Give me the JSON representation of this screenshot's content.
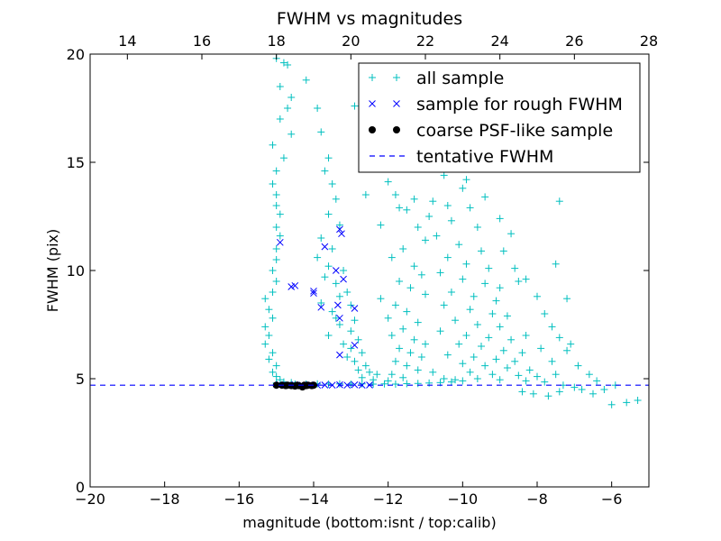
{
  "chart_data": {
    "type": "scatter",
    "title": "FWHM vs magnitudes",
    "xlabel": "magnitude (bottom:isnt / top:calib)",
    "ylabel": "FWHM (pix)",
    "xlim": [
      -20,
      -5
    ],
    "ylim": [
      0,
      20
    ],
    "top_xlim": [
      13,
      28
    ],
    "x_ticks": [
      -20,
      -18,
      -16,
      -14,
      -12,
      -10,
      -8,
      -6
    ],
    "x_tick_labels": [
      "−20",
      "−18",
      "−16",
      "−14",
      "−12",
      "−10",
      "−8",
      "−6"
    ],
    "y_ticks": [
      0,
      5,
      10,
      15,
      20
    ],
    "y_tick_labels": [
      "0",
      "5",
      "10",
      "15",
      "20"
    ],
    "top_ticks": [
      14,
      16,
      18,
      20,
      22,
      24,
      26,
      28
    ],
    "top_tick_labels": [
      "14",
      "16",
      "18",
      "20",
      "22",
      "24",
      "26",
      "28"
    ],
    "legend_position": "top-right",
    "colors": {
      "all": "#00bfbf",
      "rough": "#0000ff",
      "coarse": "#000000",
      "tentative": "#0000ff"
    },
    "series": [
      {
        "name": "all sample",
        "marker": "plus",
        "color": "#00bfbf",
        "points": [
          [
            -15.0,
            19.8
          ],
          [
            -14.8,
            19.6
          ],
          [
            -14.7,
            19.5
          ],
          [
            -14.9,
            18.5
          ],
          [
            -14.6,
            18.0
          ],
          [
            -14.7,
            17.5
          ],
          [
            -14.9,
            17.0
          ],
          [
            -14.6,
            16.3
          ],
          [
            -15.1,
            15.8
          ],
          [
            -14.8,
            15.2
          ],
          [
            -15.0,
            14.6
          ],
          [
            -15.1,
            14.0
          ],
          [
            -15.0,
            13.5
          ],
          [
            -15.0,
            13.0
          ],
          [
            -14.9,
            12.6
          ],
          [
            -15.0,
            12.0
          ],
          [
            -14.9,
            11.6
          ],
          [
            -15.0,
            11.0
          ],
          [
            -15.0,
            10.5
          ],
          [
            -15.1,
            10.0
          ],
          [
            -15.0,
            9.5
          ],
          [
            -15.1,
            9.0
          ],
          [
            -15.3,
            8.7
          ],
          [
            -15.2,
            8.2
          ],
          [
            -15.1,
            7.8
          ],
          [
            -15.3,
            7.4
          ],
          [
            -15.2,
            7.0
          ],
          [
            -15.3,
            6.6
          ],
          [
            -15.1,
            6.2
          ],
          [
            -15.2,
            5.9
          ],
          [
            -15.0,
            5.6
          ],
          [
            -15.1,
            5.3
          ],
          [
            -15.0,
            5.1
          ],
          [
            -14.9,
            4.95
          ],
          [
            -14.8,
            4.85
          ],
          [
            -15.0,
            4.8
          ],
          [
            -14.6,
            4.82
          ],
          [
            -14.2,
            18.8
          ],
          [
            -13.9,
            17.5
          ],
          [
            -13.8,
            16.4
          ],
          [
            -13.6,
            15.2
          ],
          [
            -13.7,
            14.6
          ],
          [
            -13.5,
            14.0
          ],
          [
            -13.4,
            13.3
          ],
          [
            -13.6,
            12.6
          ],
          [
            -13.3,
            12.1
          ],
          [
            -13.8,
            11.5
          ],
          [
            -13.5,
            11.0
          ],
          [
            -13.9,
            10.6
          ],
          [
            -13.6,
            10.2
          ],
          [
            -13.2,
            10.0
          ],
          [
            -13.7,
            9.7
          ],
          [
            -13.4,
            9.4
          ],
          [
            -13.1,
            9.0
          ],
          [
            -13.3,
            8.8
          ],
          [
            -13.8,
            8.5
          ],
          [
            -13.0,
            8.4
          ],
          [
            -13.5,
            8.1
          ],
          [
            -13.4,
            7.8
          ],
          [
            -12.9,
            7.7
          ],
          [
            -13.3,
            7.5
          ],
          [
            -13.0,
            7.2
          ],
          [
            -13.6,
            7.0
          ],
          [
            -12.8,
            6.8
          ],
          [
            -13.2,
            6.6
          ],
          [
            -13.0,
            6.4
          ],
          [
            -12.7,
            6.2
          ],
          [
            -13.1,
            6.0
          ],
          [
            -12.9,
            5.8
          ],
          [
            -12.6,
            5.6
          ],
          [
            -12.8,
            5.4
          ],
          [
            -12.5,
            5.3
          ],
          [
            -12.3,
            5.2
          ],
          [
            -12.7,
            5.05
          ],
          [
            -12.4,
            4.95
          ],
          [
            -12.0,
            4.9
          ],
          [
            -12.9,
            17.6
          ],
          [
            -12.6,
            16.2
          ],
          [
            -12.4,
            15.0
          ],
          [
            -12.0,
            14.1
          ],
          [
            -11.8,
            13.5
          ],
          [
            -11.5,
            12.8
          ],
          [
            -11.2,
            12.0
          ],
          [
            -11.0,
            11.4
          ],
          [
            -11.6,
            11.0
          ],
          [
            -11.9,
            10.6
          ],
          [
            -11.3,
            10.2
          ],
          [
            -11.1,
            9.8
          ],
          [
            -11.7,
            9.5
          ],
          [
            -11.4,
            9.2
          ],
          [
            -11.0,
            8.9
          ],
          [
            -12.2,
            8.7
          ],
          [
            -11.8,
            8.4
          ],
          [
            -11.5,
            8.1
          ],
          [
            -12.0,
            7.8
          ],
          [
            -11.2,
            7.6
          ],
          [
            -11.6,
            7.3
          ],
          [
            -11.9,
            7.0
          ],
          [
            -11.3,
            6.8
          ],
          [
            -11.0,
            6.6
          ],
          [
            -11.7,
            6.4
          ],
          [
            -11.4,
            6.2
          ],
          [
            -11.1,
            6.0
          ],
          [
            -11.8,
            5.8
          ],
          [
            -11.5,
            5.6
          ],
          [
            -11.2,
            5.4
          ],
          [
            -11.9,
            5.2
          ],
          [
            -11.6,
            5.05
          ],
          [
            -10.6,
            16.0
          ],
          [
            -10.2,
            15.3
          ],
          [
            -10.5,
            14.4
          ],
          [
            -10.0,
            13.8
          ],
          [
            -10.8,
            13.2
          ],
          [
            -9.8,
            12.9
          ],
          [
            -10.3,
            12.3
          ],
          [
            -9.6,
            12.0
          ],
          [
            -10.7,
            11.6
          ],
          [
            -10.1,
            11.2
          ],
          [
            -9.5,
            10.9
          ],
          [
            -10.4,
            10.6
          ],
          [
            -9.9,
            10.3
          ],
          [
            -9.3,
            10.1
          ],
          [
            -10.6,
            9.9
          ],
          [
            -10.0,
            9.6
          ],
          [
            -9.4,
            9.4
          ],
          [
            -9.0,
            9.2
          ],
          [
            -10.3,
            9.0
          ],
          [
            -9.7,
            8.8
          ],
          [
            -9.1,
            8.6
          ],
          [
            -10.5,
            8.4
          ],
          [
            -9.8,
            8.2
          ],
          [
            -9.2,
            8.0
          ],
          [
            -8.8,
            7.9
          ],
          [
            -10.2,
            7.7
          ],
          [
            -9.6,
            7.5
          ],
          [
            -9.0,
            7.4
          ],
          [
            -10.6,
            7.2
          ],
          [
            -9.9,
            7.0
          ],
          [
            -9.3,
            6.9
          ],
          [
            -8.7,
            6.8
          ],
          [
            -10.1,
            6.6
          ],
          [
            -9.5,
            6.5
          ],
          [
            -8.9,
            6.3
          ],
          [
            -8.4,
            6.2
          ],
          [
            -10.4,
            6.1
          ],
          [
            -9.7,
            6.0
          ],
          [
            -9.1,
            5.9
          ],
          [
            -8.6,
            5.8
          ],
          [
            -10.0,
            5.7
          ],
          [
            -9.4,
            5.6
          ],
          [
            -8.8,
            5.5
          ],
          [
            -8.2,
            5.4
          ],
          [
            -9.8,
            5.3
          ],
          [
            -9.2,
            5.2
          ],
          [
            -8.5,
            5.15
          ],
          [
            -8.0,
            5.1
          ],
          [
            -9.6,
            5.0
          ],
          [
            -9.0,
            4.95
          ],
          [
            -8.3,
            4.9
          ],
          [
            -7.8,
            4.85
          ],
          [
            -7.5,
            5.2
          ],
          [
            -7.6,
            5.8
          ],
          [
            -7.9,
            6.4
          ],
          [
            -7.3,
            4.7
          ],
          [
            -7.0,
            4.6
          ],
          [
            -6.8,
            4.5
          ],
          [
            -7.4,
            4.4
          ],
          [
            -8.1,
            4.3
          ],
          [
            -7.7,
            4.2
          ],
          [
            -8.4,
            4.4
          ],
          [
            -6.5,
            4.3
          ],
          [
            -6.2,
            4.5
          ],
          [
            -5.9,
            4.7
          ],
          [
            -5.3,
            4.0
          ],
          [
            -5.6,
            3.9
          ],
          [
            -6.0,
            3.8
          ],
          [
            -7.1,
            6.6
          ],
          [
            -7.2,
            8.7
          ],
          [
            -7.5,
            10.3
          ],
          [
            -7.4,
            13.2
          ],
          [
            -8.5,
            9.5
          ],
          [
            -8.3,
            7.0
          ],
          [
            -12.6,
            13.5
          ],
          [
            -12.2,
            12.1
          ],
          [
            -11.7,
            12.9
          ],
          [
            -11.3,
            13.3
          ],
          [
            -10.9,
            12.5
          ],
          [
            -10.4,
            13.0
          ],
          [
            -9.9,
            14.2
          ],
          [
            -9.4,
            13.4
          ],
          [
            -9.0,
            12.4
          ],
          [
            -8.7,
            11.7
          ],
          [
            -8.9,
            10.9
          ],
          [
            -8.6,
            10.1
          ],
          [
            -8.3,
            9.6
          ],
          [
            -8.0,
            8.8
          ],
          [
            -7.8,
            8.0
          ],
          [
            -7.6,
            7.4
          ],
          [
            -7.4,
            6.9
          ],
          [
            -7.2,
            6.3
          ],
          [
            -6.9,
            5.6
          ],
          [
            -6.6,
            5.2
          ],
          [
            -6.4,
            4.9
          ],
          [
            -10.8,
            5.3
          ],
          [
            -10.5,
            5.0
          ],
          [
            -10.2,
            4.95
          ],
          [
            -14.5,
            4.75
          ],
          [
            -14.2,
            4.75
          ],
          [
            -13.9,
            4.76
          ],
          [
            -13.6,
            4.75
          ],
          [
            -13.3,
            4.76
          ],
          [
            -13.0,
            4.75
          ],
          [
            -12.7,
            4.76
          ],
          [
            -12.4,
            4.75
          ],
          [
            -12.1,
            4.76
          ],
          [
            -11.8,
            4.75
          ],
          [
            -11.5,
            4.77
          ],
          [
            -11.2,
            4.78
          ],
          [
            -10.9,
            4.8
          ],
          [
            -10.6,
            4.82
          ],
          [
            -10.3,
            4.85
          ],
          [
            -10.0,
            4.9
          ]
        ]
      },
      {
        "name": "sample for rough FWHM",
        "marker": "x",
        "color": "#0000ff",
        "points": [
          [
            -14.9,
            11.3
          ],
          [
            -14.6,
            9.25
          ],
          [
            -14.5,
            9.3
          ],
          [
            -14.0,
            9.05
          ],
          [
            -14.0,
            8.95
          ],
          [
            -13.8,
            8.3
          ],
          [
            -13.7,
            11.1
          ],
          [
            -13.3,
            11.9
          ],
          [
            -13.25,
            11.7
          ],
          [
            -13.35,
            8.4
          ],
          [
            -13.3,
            7.8
          ],
          [
            -13.2,
            9.6
          ],
          [
            -13.4,
            10.0
          ],
          [
            -12.9,
            8.25
          ],
          [
            -12.9,
            6.55
          ],
          [
            -13.3,
            6.1
          ],
          [
            -14.9,
            4.72
          ],
          [
            -14.7,
            4.7
          ],
          [
            -14.5,
            4.72
          ],
          [
            -14.3,
            4.7
          ],
          [
            -14.1,
            4.72
          ],
          [
            -13.9,
            4.7
          ],
          [
            -13.7,
            4.71
          ],
          [
            -13.5,
            4.7
          ],
          [
            -13.3,
            4.72
          ],
          [
            -13.1,
            4.7
          ],
          [
            -12.9,
            4.72
          ],
          [
            -12.7,
            4.7
          ],
          [
            -12.5,
            4.71
          ]
        ]
      },
      {
        "name": "coarse PSF-like sample",
        "marker": "circle",
        "color": "#000000",
        "points": [
          [
            -15.0,
            4.7
          ],
          [
            -14.85,
            4.7
          ],
          [
            -14.75,
            4.68
          ],
          [
            -14.7,
            4.7
          ],
          [
            -14.6,
            4.68
          ],
          [
            -14.5,
            4.66
          ],
          [
            -14.45,
            4.7
          ],
          [
            -14.4,
            4.68
          ],
          [
            -14.3,
            4.62
          ],
          [
            -14.25,
            4.7
          ],
          [
            -14.2,
            4.68
          ],
          [
            -14.15,
            4.7
          ],
          [
            -14.05,
            4.68
          ],
          [
            -14.0,
            4.7
          ]
        ]
      },
      {
        "name": "tentative FWHM",
        "marker": "dashed-line",
        "color": "#0000ff",
        "y": 4.7
      }
    ]
  }
}
